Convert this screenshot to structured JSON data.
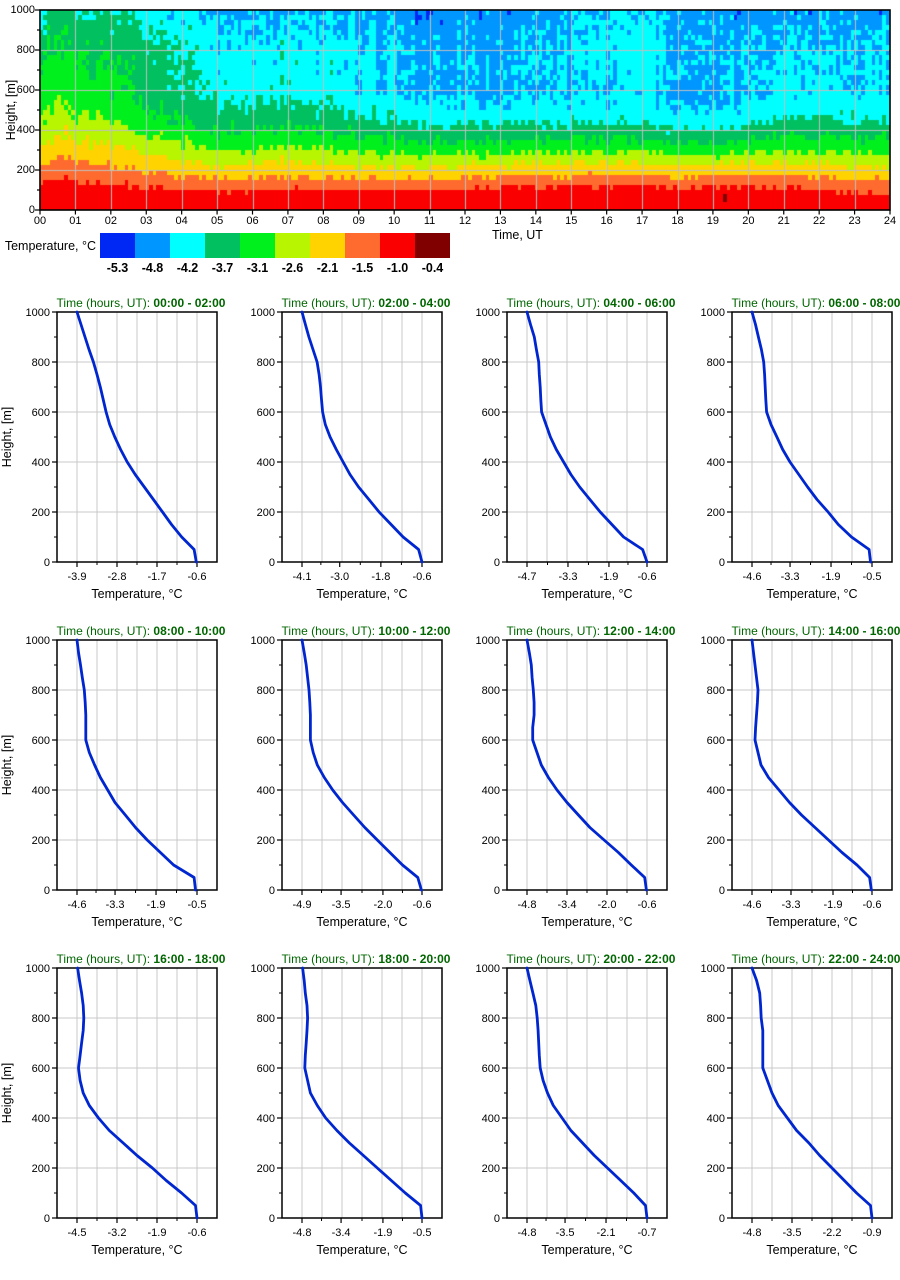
{
  "chart_data": {
    "heatmap": {
      "type": "heatmap",
      "xlabel": "Time, UT",
      "ylabel": "Height, [m]",
      "x_ticks": [
        "00",
        "01",
        "02",
        "03",
        "04",
        "05",
        "06",
        "07",
        "08",
        "09",
        "10",
        "11",
        "12",
        "13",
        "14",
        "15",
        "16",
        "17",
        "18",
        "19",
        "20",
        "21",
        "22",
        "23",
        "24"
      ],
      "y_ticks": [
        0,
        200,
        400,
        600,
        800,
        1000
      ],
      "x_range": [
        0,
        24
      ],
      "y_range": [
        0,
        1000
      ],
      "color_scale": {
        "label": "Temperature, °C",
        "band_centers": [
          -5.3,
          -4.8,
          -4.2,
          -3.7,
          -3.1,
          -2.6,
          -2.1,
          -1.5,
          -1.0,
          -0.4
        ],
        "boundaries": [
          -5.05,
          -4.5,
          -3.95,
          -3.4,
          -2.85,
          -2.35,
          -1.8,
          -1.25,
          -0.7
        ],
        "colors": [
          "#0028f5",
          "#0096ff",
          "#00ffff",
          "#00c060",
          "#00f01e",
          "#b8f500",
          "#ffd300",
          "#ff6b2e",
          "#fa0000",
          "#800000"
        ]
      },
      "window_centers": [
        1,
        3,
        5,
        7,
        9,
        11,
        13,
        15,
        17,
        19,
        21,
        23
      ],
      "noise": {
        "seed": 7,
        "cell_amp": 0.22,
        "column_amp": 0.16,
        "height_base": 0.25,
        "height_gain": 0.95
      },
      "surface_clamp": -0.72,
      "dark_speck": {
        "t": 19.3,
        "h": 80
      },
      "grid_color": "#bfbfbf"
    },
    "profiles": {
      "type": "line",
      "title_prefix": "Time (hours, UT): ",
      "xlabel": "Temperature, °C",
      "ylabel": "Height, [m]",
      "line_color": "#0026d0",
      "title_color": "#006600",
      "grid_color": "#c9c9c9",
      "y_ticks": [
        0,
        200,
        400,
        600,
        800,
        1000
      ],
      "heights": [
        0,
        50,
        100,
        150,
        200,
        250,
        300,
        350,
        400,
        450,
        500,
        550,
        600,
        650,
        700,
        750,
        800,
        850,
        900,
        950,
        1000
      ],
      "windows": [
        {
          "label": "00:00 - 02:00",
          "x_ticks": [
            -3.9,
            -2.8,
            -1.7,
            -0.6
          ],
          "temps": [
            -0.62,
            -0.68,
            -1.02,
            -1.3,
            -1.55,
            -1.8,
            -2.05,
            -2.3,
            -2.52,
            -2.7,
            -2.86,
            -3.0,
            -3.1,
            -3.18,
            -3.26,
            -3.35,
            -3.45,
            -3.57,
            -3.68,
            -3.79,
            -3.9
          ]
        },
        {
          "label": "02:00 - 04:00",
          "x_ticks": [
            -4.1,
            -3.0,
            -1.8,
            -0.6
          ],
          "temps": [
            -0.6,
            -0.7,
            -1.15,
            -1.5,
            -1.85,
            -2.15,
            -2.45,
            -2.7,
            -2.9,
            -3.1,
            -3.28,
            -3.42,
            -3.5,
            -3.53,
            -3.56,
            -3.6,
            -3.66,
            -3.78,
            -3.9,
            -4.0,
            -4.1
          ]
        },
        {
          "label": "04:00 - 06:00",
          "x_ticks": [
            -4.7,
            -3.3,
            -1.9,
            -0.6
          ],
          "temps": [
            -0.6,
            -0.75,
            -1.4,
            -1.8,
            -2.2,
            -2.55,
            -2.9,
            -3.2,
            -3.45,
            -3.7,
            -3.9,
            -4.05,
            -4.2,
            -4.23,
            -4.25,
            -4.28,
            -4.3,
            -4.38,
            -4.45,
            -4.58,
            -4.7
          ]
        },
        {
          "label": "06:00 - 08:00",
          "x_ticks": [
            -4.6,
            -3.3,
            -1.9,
            -0.5
          ],
          "temps": [
            -0.55,
            -0.6,
            -1.2,
            -1.65,
            -2.0,
            -2.38,
            -2.7,
            -3.0,
            -3.3,
            -3.55,
            -3.75,
            -3.95,
            -4.1,
            -4.13,
            -4.15,
            -4.17,
            -4.2,
            -4.28,
            -4.38,
            -4.48,
            -4.6
          ]
        },
        {
          "label": "08:00 - 10:00",
          "x_ticks": [
            -4.6,
            -3.3,
            -1.9,
            -0.5
          ],
          "temps": [
            -0.55,
            -0.6,
            -1.3,
            -1.75,
            -2.2,
            -2.6,
            -2.95,
            -3.3,
            -3.55,
            -3.8,
            -4.0,
            -4.18,
            -4.3,
            -4.3,
            -4.3,
            -4.32,
            -4.35,
            -4.42,
            -4.48,
            -4.55,
            -4.6
          ]
        },
        {
          "label": "10:00 - 12:00",
          "x_ticks": [
            -4.9,
            -3.5,
            -2.0,
            -0.6
          ],
          "temps": [
            -0.62,
            -0.75,
            -1.3,
            -1.75,
            -2.2,
            -2.65,
            -3.05,
            -3.45,
            -3.8,
            -4.1,
            -4.35,
            -4.5,
            -4.6,
            -4.6,
            -4.6,
            -4.62,
            -4.65,
            -4.7,
            -4.75,
            -4.82,
            -4.9
          ]
        },
        {
          "label": "12:00 - 14:00",
          "x_ticks": [
            -4.8,
            -3.4,
            -2.0,
            -0.6
          ],
          "temps": [
            -0.62,
            -0.68,
            -1.15,
            -1.6,
            -2.1,
            -2.6,
            -3.0,
            -3.4,
            -3.75,
            -4.05,
            -4.3,
            -4.45,
            -4.6,
            -4.6,
            -4.55,
            -4.55,
            -4.58,
            -4.62,
            -4.65,
            -4.72,
            -4.8
          ]
        },
        {
          "label": "14:00 - 16:00",
          "x_ticks": [
            -4.6,
            -3.3,
            -1.9,
            -0.6
          ],
          "temps": [
            -0.62,
            -0.68,
            -1.1,
            -1.6,
            -2.05,
            -2.5,
            -2.95,
            -3.35,
            -3.7,
            -4.05,
            -4.3,
            -4.4,
            -4.5,
            -4.48,
            -4.45,
            -4.42,
            -4.4,
            -4.45,
            -4.5,
            -4.55,
            -4.6
          ]
        },
        {
          "label": "16:00 - 18:00",
          "x_ticks": [
            -4.5,
            -3.2,
            -1.9,
            -0.6
          ],
          "temps": [
            -0.6,
            -0.65,
            -1.1,
            -1.6,
            -2.05,
            -2.55,
            -3.0,
            -3.45,
            -3.8,
            -4.1,
            -4.3,
            -4.4,
            -4.45,
            -4.4,
            -4.35,
            -4.3,
            -4.28,
            -4.3,
            -4.35,
            -4.42,
            -4.48
          ]
        },
        {
          "label": "18:00 - 20:00",
          "x_ticks": [
            -4.8,
            -3.4,
            -1.9,
            -0.5
          ],
          "temps": [
            -0.5,
            -0.55,
            -1.1,
            -1.6,
            -2.1,
            -2.6,
            -3.1,
            -3.55,
            -3.95,
            -4.25,
            -4.5,
            -4.6,
            -4.7,
            -4.68,
            -4.65,
            -4.62,
            -4.6,
            -4.62,
            -4.68,
            -4.72,
            -4.78
          ]
        },
        {
          "label": "20:00 - 22:00",
          "x_ticks": [
            -4.8,
            -3.5,
            -2.1,
            -0.7
          ],
          "temps": [
            -0.7,
            -0.75,
            -1.15,
            -1.6,
            -2.05,
            -2.5,
            -2.9,
            -3.3,
            -3.6,
            -3.9,
            -4.1,
            -4.25,
            -4.35,
            -4.38,
            -4.4,
            -4.42,
            -4.45,
            -4.5,
            -4.6,
            -4.7,
            -4.8
          ]
        },
        {
          "label": "22:00 - 24:00",
          "x_ticks": [
            -4.8,
            -3.5,
            -2.2,
            -0.9
          ],
          "temps": [
            -0.9,
            -0.95,
            -1.4,
            -1.8,
            -2.2,
            -2.6,
            -2.95,
            -3.35,
            -3.65,
            -3.95,
            -4.15,
            -4.3,
            -4.45,
            -4.45,
            -4.45,
            -4.45,
            -4.5,
            -4.52,
            -4.55,
            -4.65,
            -4.8
          ]
        }
      ]
    }
  }
}
